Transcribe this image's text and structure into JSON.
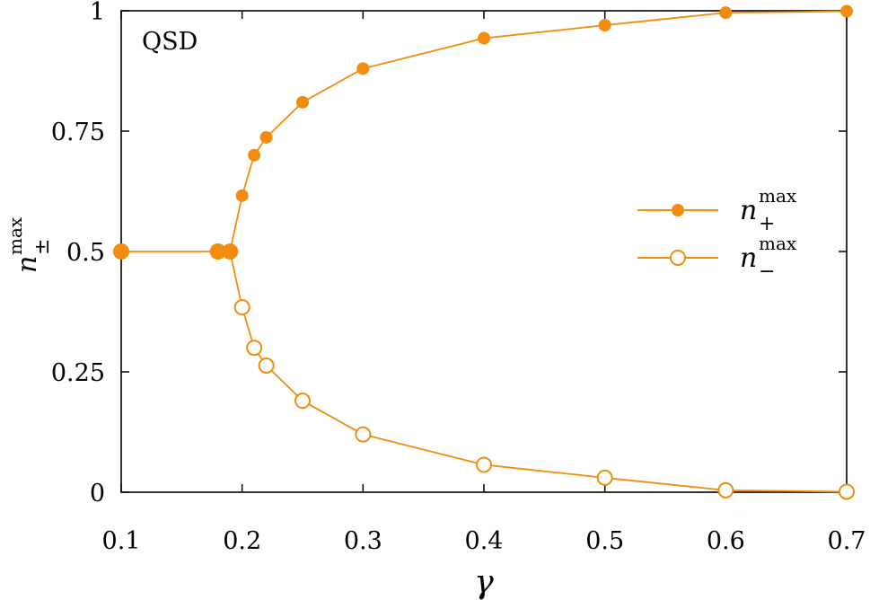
{
  "chart_data": {
    "type": "line",
    "annotation": "QSD",
    "xlabel": "γ",
    "ylabel": {
      "base": "n",
      "sup": "max",
      "sub": "±"
    },
    "xlim": [
      0.1,
      0.7
    ],
    "ylim": [
      0,
      1
    ],
    "xticks": [
      0.1,
      0.2,
      0.3,
      0.4,
      0.5,
      0.6,
      0.7
    ],
    "xtick_labels": [
      "0.1",
      "0.2",
      "0.3",
      "0.4",
      "0.5",
      "0.6",
      "0.7"
    ],
    "yticks": [
      0,
      0.25,
      0.5,
      0.75,
      1
    ],
    "ytick_labels": [
      "0",
      "0.25",
      "0.5",
      "0.75",
      "1"
    ],
    "color": "#f28c0f",
    "legend_position": "right",
    "series": [
      {
        "name": {
          "base": "n",
          "sup": "max",
          "sub": "+"
        },
        "marker": "filled-circle",
        "x": [
          0.1,
          0.18,
          0.19,
          0.2,
          0.21,
          0.22,
          0.25,
          0.3,
          0.4,
          0.5,
          0.6,
          0.7
        ],
        "y": [
          0.5,
          0.5,
          0.5,
          0.616,
          0.7,
          0.737,
          0.81,
          0.88,
          0.943,
          0.97,
          0.996,
          0.999
        ]
      },
      {
        "name": {
          "base": "n",
          "sup": "max",
          "sub": "−"
        },
        "marker": "open-circle",
        "x": [
          0.2,
          0.21,
          0.22,
          0.25,
          0.3,
          0.4,
          0.5,
          0.6,
          0.7
        ],
        "y": [
          0.384,
          0.3,
          0.263,
          0.19,
          0.12,
          0.057,
          0.03,
          0.004,
          0.001
        ]
      }
    ],
    "connector_points": {
      "x": [
        0.1,
        0.18,
        0.19
      ],
      "y": [
        0.5,
        0.5,
        0.5
      ]
    }
  }
}
